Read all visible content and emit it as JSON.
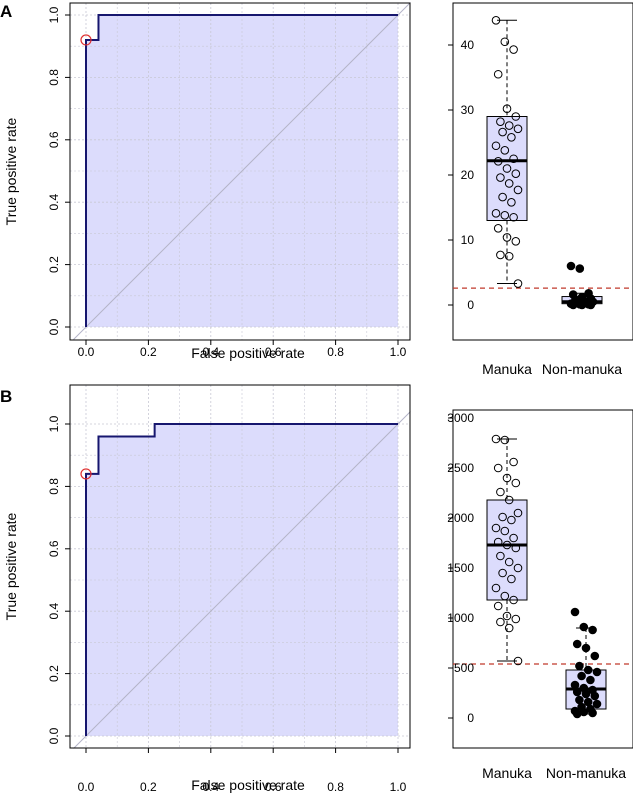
{
  "panels": {
    "A": {
      "label": "A"
    },
    "B": {
      "label": "B"
    }
  },
  "colors": {
    "roc_fill": "#dcdcfc",
    "roc_line": "#16166e",
    "diag": "#b4b4c8",
    "grid": "#c8c8d4",
    "cutoff": "#c0392b",
    "box_fill": "#dcdcfc"
  },
  "chart_data": [
    {
      "id": "A-roc",
      "type": "line",
      "title": "",
      "xlabel": "False positive rate",
      "ylabel": "True positive rate",
      "xlim": [
        0,
        1
      ],
      "ylim": [
        0,
        1
      ],
      "xticks": [
        "0.0",
        "0.2",
        "0.4",
        "0.6",
        "0.8",
        "1.0"
      ],
      "yticks": [
        "0.0",
        "0.2",
        "0.4",
        "0.6",
        "0.8",
        "1.0"
      ],
      "grid": true,
      "roc_points": [
        [
          0,
          0
        ],
        [
          0,
          0.92
        ],
        [
          0.04,
          0.92
        ],
        [
          0.04,
          1.0
        ],
        [
          1.0,
          1.0
        ]
      ],
      "optimal_point": [
        0,
        0.92
      ]
    },
    {
      "id": "A-box",
      "type": "box",
      "categories": [
        "Manuka",
        "Non-manuka"
      ],
      "ylim": [
        -2,
        46
      ],
      "yticks": [
        0,
        10,
        20,
        30,
        40
      ],
      "cutoff": 2.6,
      "boxes": [
        {
          "name": "Manuka",
          "min": 3.3,
          "q1": 13,
          "median": 22.2,
          "q3": 29,
          "max": 43.8
        },
        {
          "name": "Non-manuka",
          "min": 0,
          "q1": 0.2,
          "median": 0.5,
          "q3": 1.3,
          "max": 1.8
        }
      ],
      "points": [
        {
          "group": "Manuka",
          "values": [
            43.8,
            40.5,
            39.3,
            35.5,
            30.2,
            29,
            28.2,
            27.6,
            27.1,
            26.6,
            25.8,
            24.5,
            23.8,
            22.5,
            22.1,
            21,
            20.2,
            19.6,
            18.7,
            17.7,
            16.6,
            15.8,
            14.1,
            13.8,
            13.5,
            11.8,
            10.4,
            9.8,
            7.7,
            7.5,
            3.3
          ]
        },
        {
          "group": "Non-manuka",
          "values": [
            6.0,
            5.6,
            1.8,
            1.6,
            1.2,
            1.0,
            0.8,
            0.6,
            0.5,
            0.4,
            0.3,
            0.2,
            0.1,
            0.1,
            0,
            0,
            0
          ]
        }
      ]
    },
    {
      "id": "B-roc",
      "type": "line",
      "title": "",
      "xlabel": "False positive rate",
      "ylabel": "True positive rate",
      "xlim": [
        0,
        1
      ],
      "ylim": [
        0,
        1
      ],
      "xticks": [
        "0.0",
        "0.2",
        "0.4",
        "0.6",
        "0.8",
        "1.0"
      ],
      "yticks": [
        "0.0",
        "0.2",
        "0.4",
        "0.6",
        "0.8",
        "1.0"
      ],
      "grid": true,
      "roc_points": [
        [
          0,
          0
        ],
        [
          0,
          0.84
        ],
        [
          0.04,
          0.84
        ],
        [
          0.04,
          0.96
        ],
        [
          0.22,
          0.96
        ],
        [
          0.22,
          1.0
        ],
        [
          1.0,
          1.0
        ]
      ],
      "optimal_point": [
        0,
        0.84
      ]
    },
    {
      "id": "B-box",
      "type": "box",
      "categories": [
        "Manuka",
        "Non-manuka"
      ],
      "ylim": [
        -250,
        3080
      ],
      "yticks": [
        0,
        500,
        1000,
        1500,
        2000,
        2500,
        3000
      ],
      "cutoff": 540,
      "boxes": [
        {
          "name": "Manuka",
          "min": 570,
          "q1": 1180,
          "median": 1730,
          "q3": 2180,
          "max": 2790
        },
        {
          "name": "Non-manuka",
          "min": 40,
          "q1": 90,
          "median": 290,
          "q3": 480,
          "max": 900
        }
      ],
      "points": [
        {
          "group": "Manuka",
          "values": [
            2790,
            2780,
            2560,
            2500,
            2400,
            2350,
            2260,
            2180,
            2050,
            2010,
            1980,
            1900,
            1870,
            1800,
            1760,
            1730,
            1700,
            1620,
            1560,
            1500,
            1450,
            1390,
            1300,
            1220,
            1180,
            1120,
            1020,
            990,
            960,
            900,
            570
          ]
        },
        {
          "group": "Non-manuka",
          "values": [
            1060,
            910,
            880,
            740,
            700,
            620,
            520,
            480,
            460,
            420,
            380,
            330,
            300,
            280,
            260,
            240,
            220,
            180,
            160,
            140,
            110,
            90,
            70,
            60,
            50,
            40
          ]
        }
      ]
    }
  ]
}
